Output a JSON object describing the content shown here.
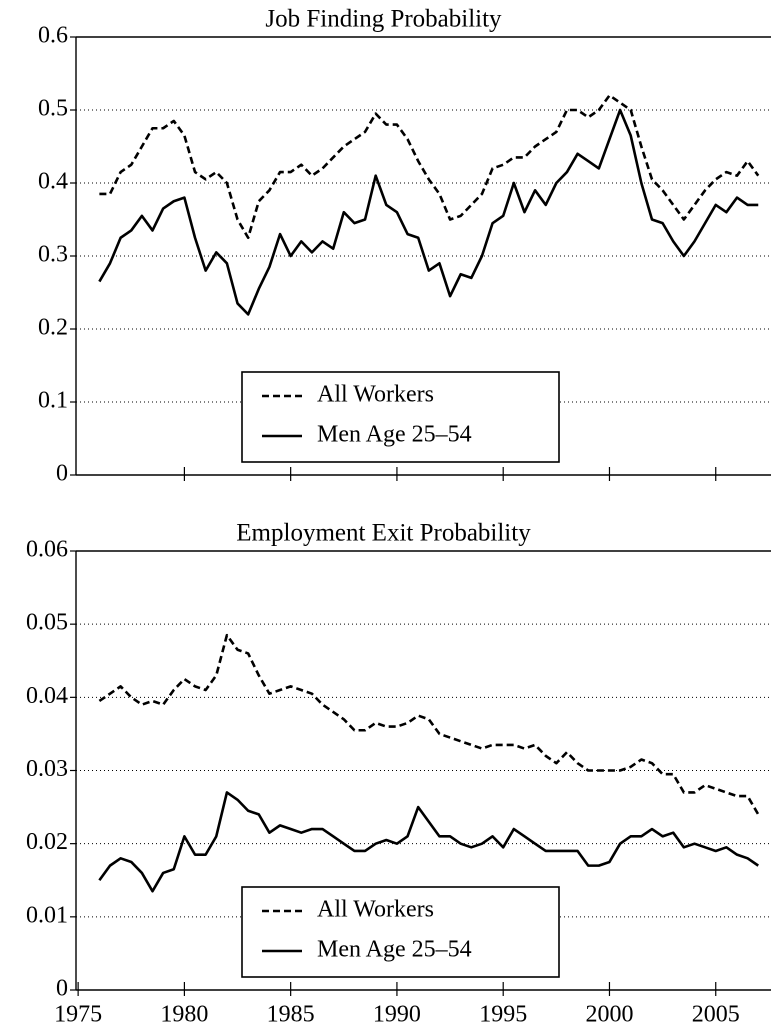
{
  "chart_data": [
    {
      "type": "line",
      "title": "Job Finding Probability",
      "x": [
        1976,
        1976.5,
        1977,
        1977.5,
        1978,
        1978.5,
        1979,
        1979.5,
        1980,
        1980.5,
        1981,
        1981.5,
        1982,
        1982.5,
        1983,
        1983.5,
        1984,
        1984.5,
        1985,
        1985.5,
        1986,
        1986.5,
        1987,
        1987.5,
        1988,
        1988.5,
        1989,
        1989.5,
        1990,
        1990.5,
        1991,
        1991.5,
        1992,
        1992.5,
        1993,
        1993.5,
        1994,
        1994.5,
        1995,
        1995.5,
        1996,
        1996.5,
        1997,
        1997.5,
        1998,
        1998.5,
        1999,
        1999.5,
        2000,
        2000.5,
        2001,
        2001.5,
        2002,
        2002.5,
        2003,
        2003.5,
        2004,
        2004.5,
        2005,
        2005.5,
        2006,
        2006.5,
        2007
      ],
      "series": [
        {
          "name": "All Workers",
          "color": "#000000",
          "dash": true,
          "values": [
            0.385,
            0.385,
            0.415,
            0.425,
            0.45,
            0.475,
            0.475,
            0.485,
            0.465,
            0.415,
            0.405,
            0.415,
            0.4,
            0.35,
            0.325,
            0.375,
            0.39,
            0.415,
            0.415,
            0.425,
            0.41,
            0.42,
            0.435,
            0.45,
            0.46,
            0.47,
            0.495,
            0.48,
            0.48,
            0.46,
            0.43,
            0.405,
            0.385,
            0.35,
            0.355,
            0.37,
            0.385,
            0.42,
            0.425,
            0.435,
            0.435,
            0.45,
            0.46,
            0.47,
            0.5,
            0.5,
            0.49,
            0.5,
            0.52,
            0.51,
            0.5,
            0.45,
            0.405,
            0.39,
            0.37,
            0.35,
            0.37,
            0.39,
            0.405,
            0.415,
            0.41,
            0.43,
            0.41
          ]
        },
        {
          "name": "Men Age 25–54",
          "color": "#000000",
          "dash": false,
          "values": [
            0.265,
            0.29,
            0.325,
            0.335,
            0.355,
            0.335,
            0.365,
            0.375,
            0.38,
            0.325,
            0.28,
            0.305,
            0.29,
            0.235,
            0.22,
            0.255,
            0.285,
            0.33,
            0.3,
            0.32,
            0.305,
            0.32,
            0.31,
            0.36,
            0.345,
            0.35,
            0.41,
            0.37,
            0.36,
            0.33,
            0.325,
            0.28,
            0.29,
            0.245,
            0.275,
            0.27,
            0.3,
            0.345,
            0.355,
            0.4,
            0.36,
            0.39,
            0.37,
            0.4,
            0.415,
            0.44,
            0.43,
            0.42,
            0.46,
            0.5,
            0.465,
            0.4,
            0.35,
            0.345,
            0.32,
            0.3,
            0.32,
            0.345,
            0.37,
            0.36,
            0.38,
            0.37,
            0.37
          ]
        }
      ],
      "xlim": [
        1974.9,
        2007.6
      ],
      "xticks": [
        1980,
        1985,
        1990,
        1995,
        2000,
        2005
      ],
      "show_xtick_labels": false,
      "ylim": [
        0,
        0.6
      ],
      "yticks": [
        0,
        0.1,
        0.2,
        0.3,
        0.4,
        0.5,
        0.6
      ],
      "grid": true,
      "legend": "lower center"
    },
    {
      "type": "line",
      "title": "Employment Exit Probability",
      "x": [
        1976,
        1976.5,
        1977,
        1977.5,
        1978,
        1978.5,
        1979,
        1979.5,
        1980,
        1980.5,
        1981,
        1981.5,
        1982,
        1982.5,
        1983,
        1983.5,
        1984,
        1984.5,
        1985,
        1985.5,
        1986,
        1986.5,
        1987,
        1987.5,
        1988,
        1988.5,
        1989,
        1989.5,
        1990,
        1990.5,
        1991,
        1991.5,
        1992,
        1992.5,
        1993,
        1993.5,
        1994,
        1994.5,
        1995,
        1995.5,
        1996,
        1996.5,
        1997,
        1997.5,
        1998,
        1998.5,
        1999,
        1999.5,
        2000,
        2000.5,
        2001,
        2001.5,
        2002,
        2002.5,
        2003,
        2003.5,
        2004,
        2004.5,
        2005,
        2005.5,
        2006,
        2006.5,
        2007
      ],
      "series": [
        {
          "name": "All Workers",
          "color": "#000000",
          "dash": true,
          "values": [
            0.0395,
            0.0405,
            0.0415,
            0.04,
            0.039,
            0.0395,
            0.039,
            0.041,
            0.0425,
            0.0415,
            0.041,
            0.043,
            0.0485,
            0.0465,
            0.046,
            0.043,
            0.0405,
            0.041,
            0.0415,
            0.041,
            0.0405,
            0.039,
            0.038,
            0.037,
            0.0355,
            0.0355,
            0.0365,
            0.036,
            0.036,
            0.0365,
            0.0375,
            0.037,
            0.035,
            0.0345,
            0.034,
            0.0335,
            0.033,
            0.0335,
            0.0335,
            0.0335,
            0.033,
            0.0335,
            0.032,
            0.031,
            0.0325,
            0.031,
            0.03,
            0.03,
            0.03,
            0.03,
            0.0305,
            0.0315,
            0.031,
            0.0295,
            0.0295,
            0.027,
            0.027,
            0.028,
            0.0275,
            0.027,
            0.0265,
            0.0265,
            0.024
          ]
        },
        {
          "name": "Men Age 25–54",
          "color": "#000000",
          "dash": false,
          "values": [
            0.015,
            0.017,
            0.018,
            0.0175,
            0.016,
            0.0135,
            0.016,
            0.0165,
            0.021,
            0.0185,
            0.0185,
            0.021,
            0.027,
            0.026,
            0.0245,
            0.024,
            0.0215,
            0.0225,
            0.022,
            0.0215,
            0.022,
            0.022,
            0.021,
            0.02,
            0.019,
            0.019,
            0.02,
            0.0205,
            0.02,
            0.021,
            0.025,
            0.023,
            0.021,
            0.021,
            0.02,
            0.0195,
            0.02,
            0.021,
            0.0195,
            0.022,
            0.021,
            0.02,
            0.019,
            0.019,
            0.019,
            0.019,
            0.017,
            0.017,
            0.0175,
            0.02,
            0.021,
            0.021,
            0.022,
            0.021,
            0.0215,
            0.0195,
            0.02,
            0.0195,
            0.019,
            0.0195,
            0.0185,
            0.018,
            0.017
          ]
        }
      ],
      "xlim": [
        1974.9,
        2007.6
      ],
      "xticks": [
        1975,
        1980,
        1985,
        1990,
        1995,
        2000,
        2005
      ],
      "show_xtick_labels": true,
      "ylim": [
        0,
        0.06
      ],
      "yticks": [
        0,
        0.01,
        0.02,
        0.03,
        0.04,
        0.05,
        0.06
      ],
      "grid": true,
      "legend": "lower center"
    }
  ]
}
